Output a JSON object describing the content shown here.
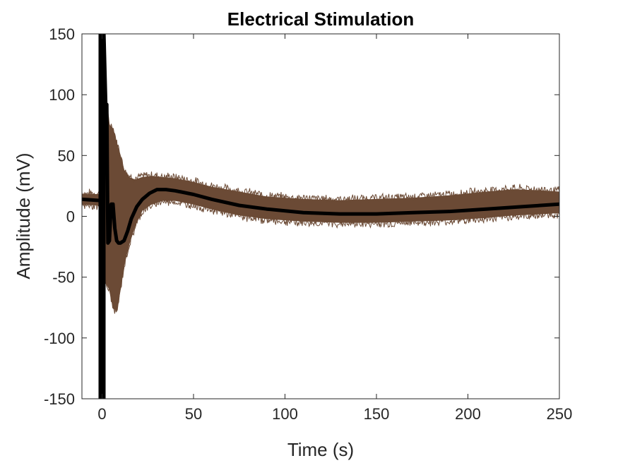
{
  "chart_data": {
    "type": "line",
    "title": "Electrical Stimulation",
    "xlabel": "Time (s)",
    "ylabel": "Amplitude (mV)",
    "xlim": [
      -11,
      250
    ],
    "ylim": [
      -150,
      150
    ],
    "xticks": [
      "0",
      "50",
      "100",
      "150",
      "200",
      "250"
    ],
    "xtick_values": [
      0,
      50,
      100,
      150,
      200,
      250
    ],
    "yticks": [
      "-150",
      "-100",
      "-50",
      "0",
      "50",
      "100",
      "150"
    ],
    "ytick_values": [
      -150,
      -100,
      -50,
      0,
      50,
      100,
      150
    ],
    "grid": false,
    "legend": "none",
    "trial_band": {
      "color": "#6b4a35",
      "x": [
        -11,
        -1,
        0.5,
        2,
        4,
        6,
        8,
        10,
        12,
        15,
        18,
        22,
        27,
        33,
        40,
        50,
        60,
        75,
        90,
        110,
        130,
        150,
        170,
        190,
        210,
        225,
        240,
        250
      ],
      "upper": [
        18,
        18,
        100,
        92,
        75,
        72,
        60,
        50,
        38,
        32,
        30,
        32,
        33,
        32,
        31,
        28,
        24,
        20,
        16,
        14,
        13,
        14,
        15,
        17,
        20,
        22,
        21,
        20
      ],
      "lower": [
        10,
        9,
        -40,
        -55,
        -60,
        -75,
        -78,
        -60,
        -40,
        -22,
        -8,
        5,
        10,
        13,
        13,
        10,
        6,
        1,
        -2,
        -4,
        -5,
        -5,
        -4,
        -3,
        -1,
        1,
        2,
        3
      ]
    },
    "mean_trace": {
      "color": "#000000",
      "x": [
        -11,
        -1,
        0,
        0.3,
        1,
        2,
        2.6,
        3.2,
        4,
        5,
        6,
        7,
        8,
        9,
        10,
        12,
        14,
        16,
        19,
        22,
        26,
        30,
        35,
        40,
        50,
        60,
        75,
        90,
        110,
        130,
        150,
        170,
        190,
        210,
        230,
        250
      ],
      "y": [
        14,
        13,
        -150,
        150,
        150,
        92,
        92,
        -22,
        -20,
        10,
        10,
        -10,
        -20,
        -22,
        -22,
        -20,
        -12,
        -2,
        8,
        14,
        19,
        22,
        22,
        21,
        18,
        14,
        9,
        6,
        3,
        2,
        2,
        3,
        4,
        6,
        8,
        10
      ]
    },
    "artifact_x": 0
  }
}
